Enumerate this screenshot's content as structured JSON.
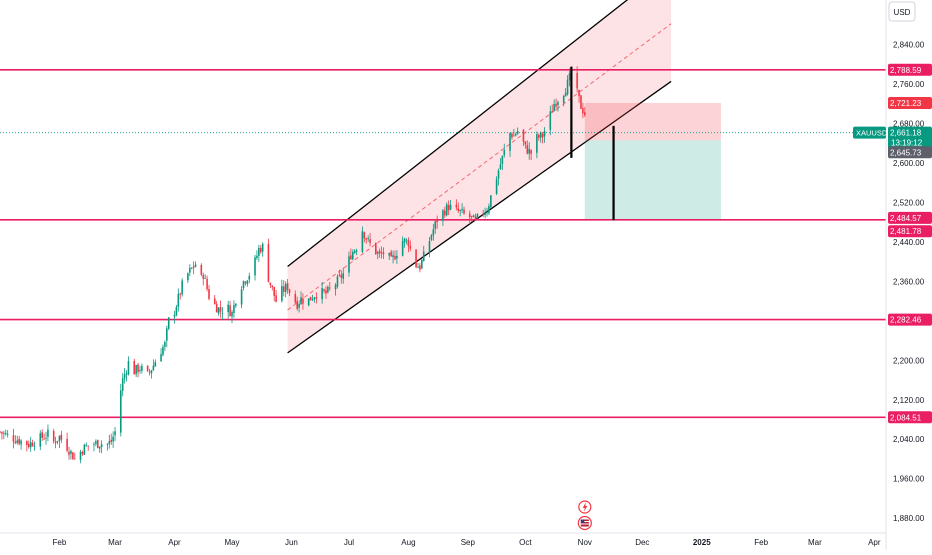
{
  "currency_label": "USD",
  "chart_data": {
    "type": "candlestick",
    "symbol": "XAUUSD",
    "y_range": [
      1850,
      2930
    ],
    "y_ticks": [
      1880,
      1960,
      2040,
      2120,
      2200,
      2280,
      2360,
      2440,
      2520,
      2600,
      2680,
      2760,
      2840
    ],
    "y_tick_labels": [
      "1,880.00",
      "1,960.00",
      "2,040.00",
      "2,120.00",
      "2,200.00",
      "2,280.00",
      "2,360.00",
      "2,440.00",
      "2,520.00",
      "2,600.00",
      "2,680.00",
      "2,760.00",
      "2,840.00"
    ],
    "x_labels": [
      {
        "label": "Feb",
        "x": 31
      },
      {
        "label": "Mar",
        "x": 60
      },
      {
        "label": "Apr",
        "x": 91
      },
      {
        "label": "May",
        "x": 121
      },
      {
        "label": "Jun",
        "x": 152
      },
      {
        "label": "Jul",
        "x": 182
      },
      {
        "label": "Aug",
        "x": 213
      },
      {
        "label": "Sep",
        "x": 244
      },
      {
        "label": "Oct",
        "x": 274
      },
      {
        "label": "Nov",
        "x": 305
      },
      {
        "label": "Dec",
        "x": 335
      },
      {
        "label": "2025",
        "x": 366
      },
      {
        "label": "Feb",
        "x": 397
      },
      {
        "label": "Mar",
        "x": 425
      },
      {
        "label": "Apr",
        "x": 456
      }
    ],
    "x_range": [
      0,
      460
    ],
    "price_path": [
      [
        0,
        2055
      ],
      [
        5,
        2045
      ],
      [
        10,
        2038
      ],
      [
        15,
        2030
      ],
      [
        20,
        2040
      ],
      [
        25,
        2050
      ],
      [
        28,
        2035
      ],
      [
        31,
        2045
      ],
      [
        35,
        2025
      ],
      [
        39,
        2000
      ],
      [
        43,
        2020
      ],
      [
        47,
        2030
      ],
      [
        52,
        2032
      ],
      [
        56,
        2030
      ],
      [
        58,
        2035
      ],
      [
        60,
        2055
      ],
      [
        62,
        2120
      ],
      [
        64,
        2160
      ],
      [
        67,
        2195
      ],
      [
        70,
        2178
      ],
      [
        73,
        2185
      ],
      [
        77,
        2170
      ],
      [
        80,
        2190
      ],
      [
        83,
        2215
      ],
      [
        86,
        2232
      ],
      [
        88,
        2280
      ],
      [
        91,
        2300
      ],
      [
        94,
        2338
      ],
      [
        96,
        2365
      ],
      [
        99,
        2380
      ],
      [
        102,
        2395
      ],
      [
        104,
        2355
      ],
      [
        106,
        2375
      ],
      [
        109,
        2330
      ],
      [
        112,
        2312
      ],
      [
        115,
        2300
      ],
      [
        118,
        2310
      ],
      [
        121,
        2295
      ],
      [
        124,
        2340
      ],
      [
        127,
        2360
      ],
      [
        130,
        2375
      ],
      [
        133,
        2400
      ],
      [
        135,
        2425
      ],
      [
        137,
        2430
      ],
      [
        139,
        2380
      ],
      [
        141,
        2355
      ],
      [
        144,
        2320
      ],
      [
        147,
        2340
      ],
      [
        150,
        2350
      ],
      [
        152,
        2330
      ],
      [
        155,
        2315
      ],
      [
        157,
        2325
      ],
      [
        160,
        2318
      ],
      [
        163,
        2330
      ],
      [
        166,
        2338
      ],
      [
        170,
        2335
      ],
      [
        173,
        2345
      ],
      [
        176,
        2360
      ],
      [
        180,
        2380
      ],
      [
        183,
        2415
      ],
      [
        186,
        2430
      ],
      [
        189,
        2465
      ],
      [
        192,
        2440
      ],
      [
        195,
        2425
      ],
      [
        198,
        2412
      ],
      [
        201,
        2420
      ],
      [
        204,
        2400
      ],
      [
        207,
        2420
      ],
      [
        210,
        2442
      ],
      [
        213,
        2440
      ],
      [
        216,
        2395
      ],
      [
        219,
        2390
      ],
      [
        222,
        2420
      ],
      [
        225,
        2455
      ],
      [
        228,
        2485
      ],
      [
        231,
        2500
      ],
      [
        234,
        2512
      ],
      [
        237,
        2503
      ],
      [
        240,
        2500
      ],
      [
        243,
        2492
      ],
      [
        245,
        2490
      ],
      [
        248,
        2480
      ],
      [
        251,
        2500
      ],
      [
        254,
        2505
      ],
      [
        257,
        2545
      ],
      [
        260,
        2585
      ],
      [
        263,
        2622
      ],
      [
        266,
        2660
      ],
      [
        268,
        2655
      ],
      [
        270,
        2665
      ],
      [
        272,
        2650
      ],
      [
        274,
        2630
      ],
      [
        277,
        2620
      ],
      [
        280,
        2650
      ],
      [
        283,
        2655
      ],
      [
        286,
        2685
      ],
      [
        289,
        2720
      ],
      [
        292,
        2735
      ],
      [
        294,
        2745
      ],
      [
        296,
        2760
      ],
      [
        298,
        2782
      ],
      [
        299,
        2788
      ],
      [
        301,
        2740
      ],
      [
        303,
        2715
      ],
      [
        305,
        2700
      ],
      [
        306,
        2661
      ]
    ],
    "horizontal_levels": [
      {
        "price": 2788.59,
        "label": "2,788.59"
      },
      {
        "price": 2721.23,
        "label": "2,721.23"
      },
      {
        "price": 2484.57,
        "label": "2,484.57"
      },
      {
        "price": 2481.78,
        "label": "2,481.78"
      },
      {
        "price": 2282.46,
        "label": "2,282.46"
      },
      {
        "price": 2084.51,
        "label": "2,084.51"
      }
    ],
    "drawn_lines": [
      2788.59,
      2484.57,
      2282.46,
      2084.51
    ],
    "current": {
      "symbol": "XAUUSD",
      "price_label": "2,661.18",
      "price": 2661.18,
      "countdown": "13:19:12"
    },
    "alt_price": {
      "price": 2645.73,
      "label": "2,645.73"
    },
    "channel": {
      "upper": {
        "from": [
          150,
          2390
        ],
        "to": [
          350,
          3000
        ]
      },
      "lower": {
        "from": [
          150,
          2215
        ],
        "to": [
          350,
          2765
        ]
      },
      "mid": {
        "from": [
          150,
          2302
        ],
        "to": [
          350,
          2882
        ]
      }
    },
    "short_position": {
      "x_start": 305,
      "x_end": 376,
      "entry": 2645.73,
      "stop": 2721.23,
      "target": 2484.57
    },
    "markers": [
      {
        "x": 298,
        "top": 2795,
        "bottom": 2610
      },
      {
        "x": 320,
        "top": 2675,
        "bottom": 2484
      }
    ],
    "event_icons": [
      {
        "x": 305,
        "icon": "lightning-icon"
      },
      {
        "x": 305,
        "icon": "flag-icon"
      }
    ]
  }
}
